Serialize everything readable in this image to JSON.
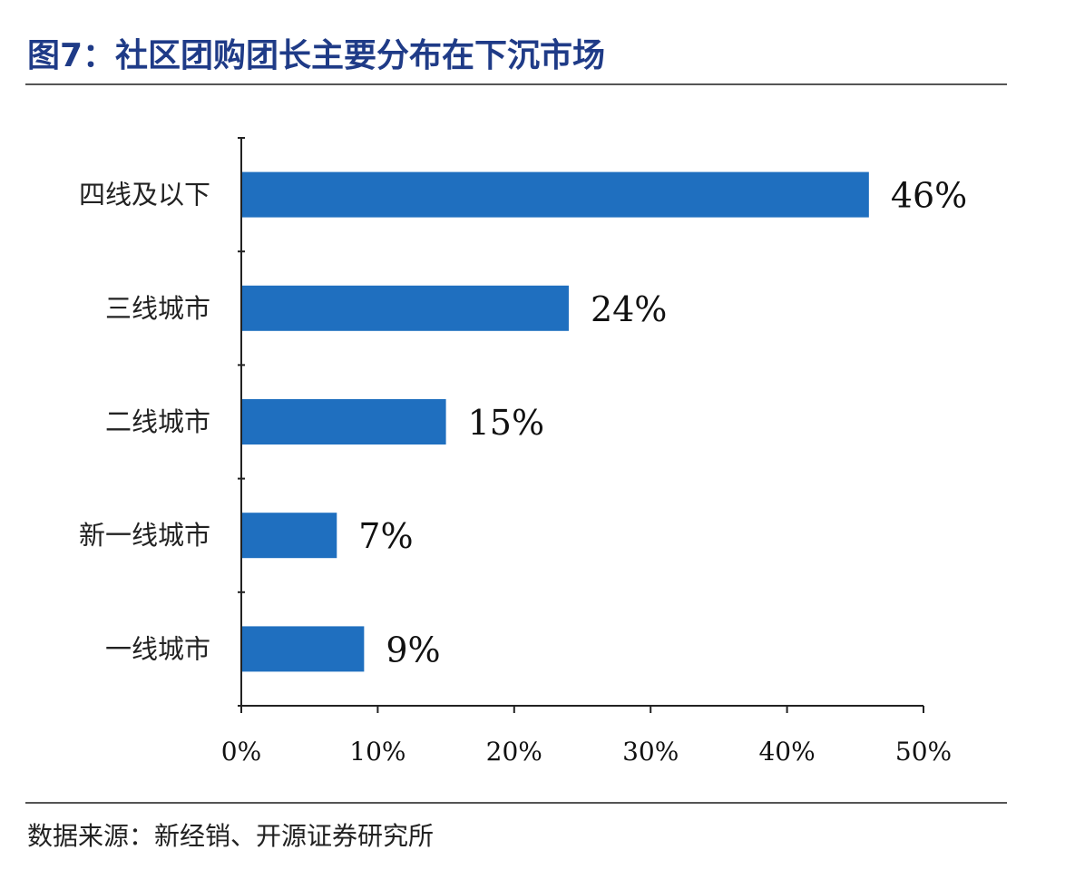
{
  "title": "图7：社区团购团长主要分布在下沉市场",
  "source": "数据来源：新经销、开源证券研究所",
  "chart_data": {
    "type": "bar",
    "orientation": "horizontal",
    "categories": [
      "四线及以下",
      "三线城市",
      "二线城市",
      "新一线城市",
      "一线城市"
    ],
    "values": [
      46,
      24,
      15,
      7,
      9
    ],
    "value_labels": [
      "46%",
      "24%",
      "15%",
      "7%",
      "9%"
    ],
    "xlim": [
      0,
      50
    ],
    "xticks": [
      0,
      10,
      20,
      30,
      40,
      50
    ],
    "xtick_labels": [
      "0%",
      "10%",
      "20%",
      "30%",
      "40%",
      "50%"
    ],
    "bar_color": "#1f6fbf",
    "grid": false,
    "legend": "none"
  }
}
